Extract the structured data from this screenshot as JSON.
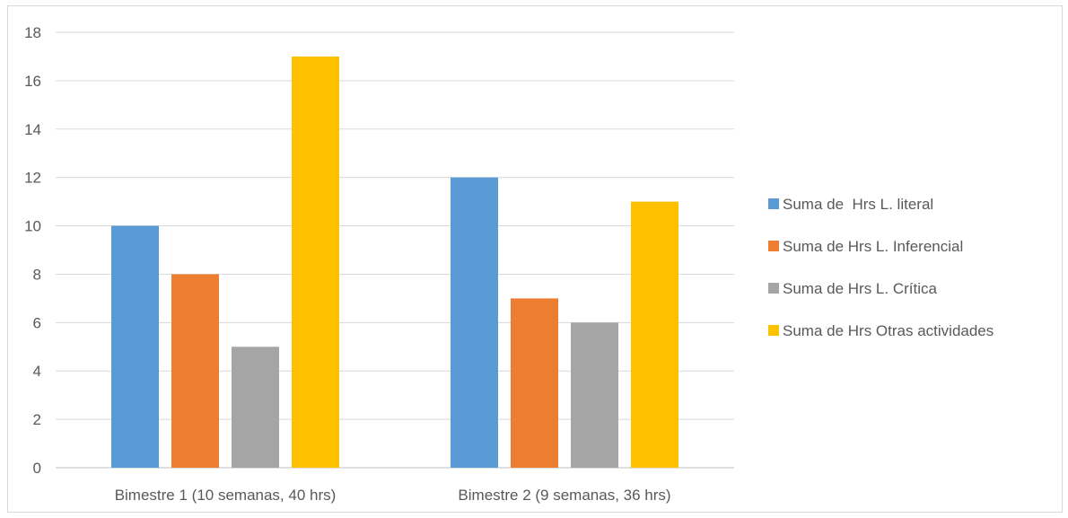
{
  "chart_data": {
    "type": "bar",
    "categories": [
      "Bimestre 1 (10 semanas, 40 hrs)",
      "Bimestre 2 (9 semanas, 36 hrs)"
    ],
    "series": [
      {
        "name": "Suma de  Hrs L. literal",
        "color": "#5b9bd5",
        "values": [
          10,
          12
        ]
      },
      {
        "name": "Suma de Hrs L. Inferencial",
        "color": "#ed7d31",
        "values": [
          8,
          7
        ]
      },
      {
        "name": "Suma de Hrs L. Crítica",
        "color": "#a5a5a5",
        "values": [
          5,
          6
        ]
      },
      {
        "name": "Suma de Hrs Otras actividades",
        "color": "#ffc000",
        "values": [
          17,
          11
        ]
      }
    ],
    "yticks": [
      "0",
      "2",
      "4",
      "6",
      "8",
      "10",
      "12",
      "14",
      "16",
      "18"
    ],
    "ylim": [
      0,
      18
    ],
    "title": "",
    "xlabel": "",
    "ylabel": "",
    "grid": true,
    "legend": "right"
  }
}
